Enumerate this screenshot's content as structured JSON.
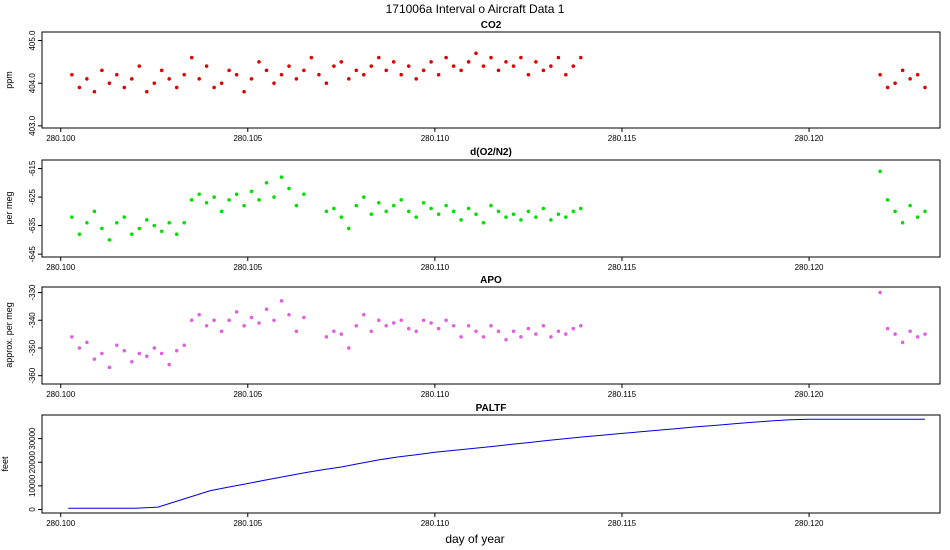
{
  "figure": {
    "title": "171006a   Interval o Aircraft Data 1",
    "xlabel": "day of year"
  },
  "chart_data": [
    {
      "type": "scatter",
      "title": "CO2",
      "ylabel": "ppm",
      "xlim": [
        280.0995,
        280.1235
      ],
      "ylim": [
        402.95,
        405.2
      ],
      "xticks": [
        280.1,
        280.105,
        280.11,
        280.115,
        280.12
      ],
      "xtick_labels": [
        "280.100",
        "280.105",
        "280.110",
        "280.115",
        "280.120"
      ],
      "yticks": [
        403.0,
        404.0,
        405.0
      ],
      "ytick_labels": [
        "403.0",
        "404.0",
        "405.0"
      ],
      "series": [
        {
          "color": "#e00000",
          "style": "scatter",
          "x": [
            280.1003,
            280.1005,
            280.1007,
            280.1009,
            280.1011,
            280.1013,
            280.1015,
            280.1017,
            280.1019,
            280.1021,
            280.1023,
            280.1025,
            280.1027,
            280.1029,
            280.1031,
            280.1033,
            280.1035,
            280.1037,
            280.1039,
            280.1041,
            280.1043,
            280.1045,
            280.1047,
            280.1049,
            280.1051,
            280.1053,
            280.1055,
            280.1057,
            280.1059,
            280.1061,
            280.1063,
            280.1065,
            280.1067,
            280.1069,
            280.1071,
            280.1073,
            280.1075,
            280.1077,
            280.1079,
            280.1081,
            280.1083,
            280.1085,
            280.1087,
            280.1089,
            280.1091,
            280.1093,
            280.1095,
            280.1097,
            280.1099,
            280.1101,
            280.1103,
            280.1105,
            280.1107,
            280.1109,
            280.1111,
            280.1113,
            280.1115,
            280.1117,
            280.1119,
            280.1121,
            280.1123,
            280.1125,
            280.1127,
            280.1129,
            280.1131,
            280.1133,
            280.1135,
            280.1137,
            280.1139,
            280.1219,
            280.1221,
            280.1223,
            280.1225,
            280.1227,
            280.1229,
            280.1231
          ],
          "y": [
            404.2,
            403.9,
            404.1,
            403.8,
            404.3,
            404.0,
            404.2,
            403.9,
            404.1,
            404.4,
            403.8,
            404.0,
            404.3,
            404.1,
            403.9,
            404.2,
            404.6,
            404.1,
            404.4,
            403.9,
            404.0,
            404.3,
            404.2,
            403.8,
            404.1,
            404.5,
            404.3,
            404.0,
            404.2,
            404.4,
            404.1,
            404.3,
            404.6,
            404.2,
            404.0,
            404.4,
            404.5,
            404.1,
            404.3,
            404.2,
            404.4,
            404.6,
            404.3,
            404.5,
            404.2,
            404.4,
            404.1,
            404.3,
            404.5,
            404.2,
            404.6,
            404.4,
            404.3,
            404.5,
            404.7,
            404.4,
            404.6,
            404.3,
            404.5,
            404.4,
            404.6,
            404.2,
            404.5,
            404.3,
            404.4,
            404.6,
            404.2,
            404.4,
            404.6,
            404.2,
            403.9,
            404.0,
            404.3,
            404.1,
            404.2,
            403.9
          ]
        }
      ]
    },
    {
      "type": "scatter",
      "title": "d(O2/N2)",
      "ylabel": "per meg",
      "xlim": [
        280.0995,
        280.1235
      ],
      "ylim": [
        -646,
        -612
      ],
      "xticks": [
        280.1,
        280.105,
        280.11,
        280.115,
        280.12
      ],
      "xtick_labels": [
        "280.100",
        "280.105",
        "280.110",
        "280.115",
        "280.120"
      ],
      "yticks": [
        -645,
        -635,
        -625,
        -615
      ],
      "ytick_labels": [
        "-645",
        "-635",
        "-625",
        "-615"
      ],
      "series": [
        {
          "color": "#00e000",
          "style": "scatter",
          "x": [
            280.1003,
            280.1005,
            280.1007,
            280.1009,
            280.1011,
            280.1013,
            280.1015,
            280.1017,
            280.1019,
            280.1021,
            280.1023,
            280.1025,
            280.1027,
            280.1029,
            280.1031,
            280.1033,
            280.1035,
            280.1037,
            280.1039,
            280.1041,
            280.1043,
            280.1045,
            280.1047,
            280.1049,
            280.1051,
            280.1053,
            280.1055,
            280.1057,
            280.1059,
            280.1061,
            280.1063,
            280.1065,
            280.1071,
            280.1073,
            280.1075,
            280.1077,
            280.1079,
            280.1081,
            280.1083,
            280.1085,
            280.1087,
            280.1089,
            280.1091,
            280.1093,
            280.1095,
            280.1097,
            280.1099,
            280.1101,
            280.1103,
            280.1105,
            280.1107,
            280.1109,
            280.1111,
            280.1113,
            280.1115,
            280.1117,
            280.1119,
            280.1121,
            280.1123,
            280.1125,
            280.1127,
            280.1129,
            280.1131,
            280.1133,
            280.1135,
            280.1137,
            280.1139,
            280.1219,
            280.1221,
            280.1223,
            280.1225,
            280.1227,
            280.1229,
            280.1231
          ],
          "y": [
            -632,
            -638,
            -634,
            -630,
            -636,
            -640,
            -634,
            -632,
            -638,
            -636,
            -633,
            -635,
            -637,
            -634,
            -638,
            -634,
            -626,
            -624,
            -627,
            -625,
            -630,
            -626,
            -624,
            -628,
            -623,
            -626,
            -620,
            -625,
            -618,
            -622,
            -628,
            -624,
            -630,
            -629,
            -632,
            -636,
            -628,
            -625,
            -631,
            -627,
            -630,
            -628,
            -626,
            -630,
            -632,
            -627,
            -629,
            -631,
            -628,
            -630,
            -633,
            -629,
            -631,
            -634,
            -628,
            -630,
            -632,
            -631,
            -633,
            -630,
            -632,
            -629,
            -633,
            -631,
            -632,
            -630,
            -629,
            -616,
            -626,
            -630,
            -634,
            -628,
            -632,
            -630
          ]
        }
      ]
    },
    {
      "type": "scatter",
      "title": "APO",
      "ylabel": "approx. per meg",
      "xlim": [
        280.0995,
        280.1235
      ],
      "ylim": [
        -363,
        -328
      ],
      "xticks": [
        280.1,
        280.105,
        280.11,
        280.115,
        280.12
      ],
      "xtick_labels": [
        "280.100",
        "280.105",
        "280.110",
        "280.115",
        "280.120"
      ],
      "yticks": [
        -360,
        -350,
        -340,
        -330
      ],
      "ytick_labels": [
        "-360",
        "-350",
        "-340",
        "-330"
      ],
      "series": [
        {
          "color": "#e060e0",
          "style": "scatter",
          "x": [
            280.1003,
            280.1005,
            280.1007,
            280.1009,
            280.1011,
            280.1013,
            280.1015,
            280.1017,
            280.1019,
            280.1021,
            280.1023,
            280.1025,
            280.1027,
            280.1029,
            280.1031,
            280.1033,
            280.1035,
            280.1037,
            280.1039,
            280.1041,
            280.1043,
            280.1045,
            280.1047,
            280.1049,
            280.1051,
            280.1053,
            280.1055,
            280.1057,
            280.1059,
            280.1061,
            280.1063,
            280.1065,
            280.1071,
            280.1073,
            280.1075,
            280.1077,
            280.1079,
            280.1081,
            280.1083,
            280.1085,
            280.1087,
            280.1089,
            280.1091,
            280.1093,
            280.1095,
            280.1097,
            280.1099,
            280.1101,
            280.1103,
            280.1105,
            280.1107,
            280.1109,
            280.1111,
            280.1113,
            280.1115,
            280.1117,
            280.1119,
            280.1121,
            280.1123,
            280.1125,
            280.1127,
            280.1129,
            280.1131,
            280.1133,
            280.1135,
            280.1137,
            280.1139,
            280.1219,
            280.1221,
            280.1223,
            280.1225,
            280.1227,
            280.1229,
            280.1231
          ],
          "y": [
            -346,
            -350,
            -348,
            -354,
            -352,
            -357,
            -349,
            -351,
            -355,
            -352,
            -353,
            -350,
            -352,
            -356,
            -351,
            -349,
            -340,
            -338,
            -342,
            -340,
            -344,
            -340,
            -337,
            -342,
            -339,
            -341,
            -336,
            -340,
            -333,
            -338,
            -344,
            -339,
            -346,
            -344,
            -345,
            -350,
            -342,
            -338,
            -344,
            -340,
            -342,
            -341,
            -340,
            -343,
            -344,
            -340,
            -341,
            -343,
            -340,
            -342,
            -346,
            -342,
            -344,
            -346,
            -342,
            -344,
            -347,
            -344,
            -346,
            -343,
            -345,
            -342,
            -346,
            -344,
            -345,
            -343,
            -342,
            -330,
            -343,
            -345,
            -348,
            -344,
            -346,
            -345
          ]
        }
      ]
    },
    {
      "type": "line",
      "title": "PALTF",
      "ylabel": "feet",
      "xlim": [
        280.0995,
        280.1235
      ],
      "ylim": [
        -1500,
        40000
      ],
      "xticks": [
        280.1,
        280.105,
        280.11,
        280.115,
        280.12
      ],
      "xtick_labels": [
        "280.100",
        "280.105",
        "280.110",
        "280.115",
        "280.120"
      ],
      "yticks": [
        0,
        10000,
        20000,
        30000
      ],
      "ytick_labels": [
        "0",
        "10000",
        "20000",
        "30000"
      ],
      "series": [
        {
          "color": "#0000dd",
          "style": "line",
          "x": [
            280.1002,
            280.101,
            280.102,
            280.1026,
            280.103,
            280.1035,
            280.104,
            280.1045,
            280.105,
            280.1055,
            280.106,
            280.1065,
            280.107,
            280.1075,
            280.108,
            280.1085,
            280.109,
            280.1095,
            280.11,
            280.1105,
            280.111,
            280.1115,
            280.112,
            280.1125,
            280.113,
            280.1135,
            280.114,
            280.1145,
            280.115,
            280.1155,
            280.116,
            280.1165,
            280.117,
            280.1175,
            280.118,
            280.1185,
            280.119,
            280.1195,
            280.12,
            280.121,
            280.122,
            280.1231
          ],
          "y": [
            500,
            500,
            500,
            1000,
            3000,
            5500,
            8000,
            9500,
            11000,
            12500,
            14000,
            15500,
            16800,
            18000,
            19500,
            21000,
            22200,
            23200,
            24200,
            25000,
            25800,
            26600,
            27500,
            28300,
            29200,
            30000,
            30800,
            31500,
            32200,
            32900,
            33600,
            34300,
            35000,
            35600,
            36300,
            36900,
            37500,
            38000,
            38200,
            38200,
            38200,
            38200
          ]
        }
      ]
    }
  ]
}
